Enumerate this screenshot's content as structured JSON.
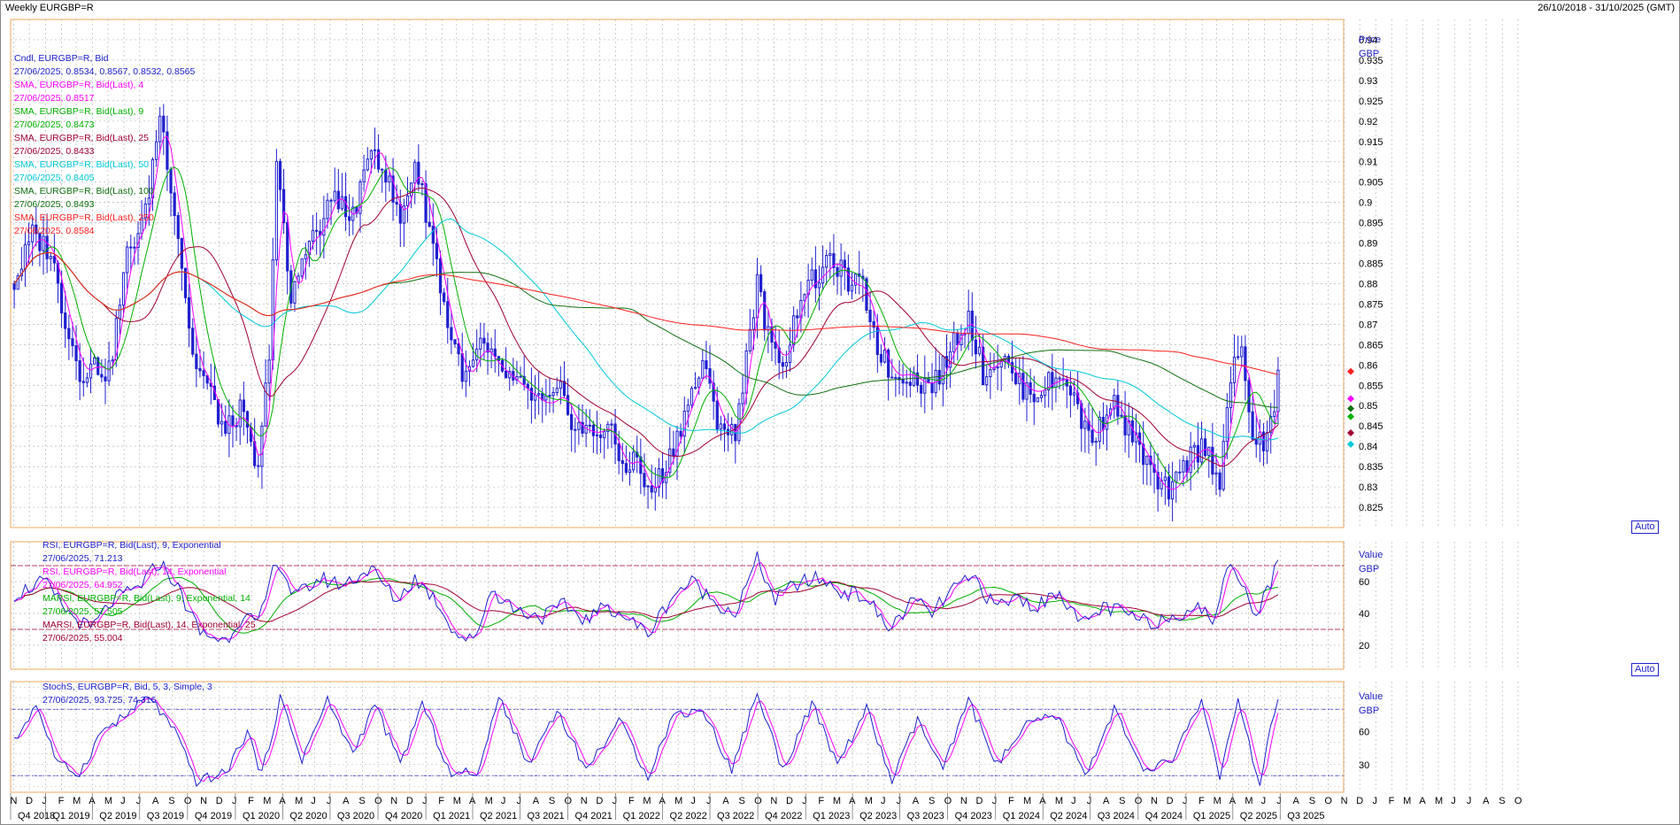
{
  "window": {
    "title": "Weekly EURGBP=R",
    "date_range": "26/10/2018 - 31/10/2025 (GMT)"
  },
  "colors": {
    "candle": "#2020d0",
    "sma4": "#ff00ff",
    "sma9": "#00b000",
    "sma25": "#a00030",
    "sma50": "#00c8d8",
    "sma100": "#107010",
    "sma250": "#ff2020",
    "grid": "#b8b8b8",
    "panel_border": "#f0a860"
  },
  "panels": {
    "price": {
      "axis_title": "Price",
      "axis_unit": "GBP",
      "auto_label": "Auto",
      "legend": [
        {
          "label": "Cndl, EURGBP=R, Bid",
          "value": "27/06/2025, 0.8534, 0.8567, 0.8532, 0.8565",
          "color": "#2020d0"
        },
        {
          "label": "SMA, EURGBP=R, Bid(Last),  4",
          "value": "27/06/2025, 0.8517",
          "color": "#ff00ff"
        },
        {
          "label": "SMA, EURGBP=R, Bid(Last),  9",
          "value": "27/06/2025, 0.8473",
          "color": "#00b000"
        },
        {
          "label": "SMA, EURGBP=R, Bid(Last),  25",
          "value": "27/06/2025, 0.8433",
          "color": "#a00030"
        },
        {
          "label": "SMA, EURGBP=R, Bid(Last),  50",
          "value": "27/06/2025, 0.8405",
          "color": "#00c8d8"
        },
        {
          "label": "SMA, EURGBP=R, Bid(Last),  100",
          "value": "27/06/2025, 0.8493",
          "color": "#107010"
        },
        {
          "label": "SMA, EURGBP=R, Bid(Last),  250",
          "value": "27/06/2025, 0.8584",
          "color": "#ff2020"
        }
      ],
      "ticks": [
        "0.825",
        "0.83",
        "0.835",
        "0.84",
        "0.845",
        "0.85",
        "0.855",
        "0.86",
        "0.865",
        "0.87",
        "0.875",
        "0.88",
        "0.885",
        "0.89",
        "0.895",
        "0.9",
        "0.905",
        "0.91",
        "0.915",
        "0.92",
        "0.925",
        "0.93",
        "0.935",
        "0.94"
      ]
    },
    "rsi": {
      "axis_title": "Value",
      "axis_unit": "GBP",
      "auto_label": "Auto",
      "legend": [
        {
          "label": "RSI, EURGBP=R, Bid(Last),  9, Exponential",
          "value": "27/06/2025, 71.213",
          "color": "#2020d0"
        },
        {
          "label": "RSI, EURGBP=R, Bid(Last),  14, Exponential",
          "value": "27/06/2025, 64.952",
          "color": "#ff00ff"
        },
        {
          "label": "MARSI, EURGBP=R, Bid(Last),  9, Exponential, 14",
          "value": "27/06/2025, 57.505",
          "color": "#00b000"
        },
        {
          "label": "MARSI, EURGBP=R, Bid(Last),  14, Exponential, 25",
          "value": "27/06/2025, 55.004",
          "color": "#a00030"
        }
      ],
      "ticks": [
        "20",
        "40",
        "60"
      ]
    },
    "stoch": {
      "axis_title": "Value",
      "axis_unit": "GBP",
      "legend": [
        {
          "label": "StochS, EURGBP=R, Bid,  5, 3, Simple, 3",
          "value": "27/06/2025, 93.725, 74.316",
          "color": "#2020d0"
        }
      ],
      "ticks": [
        "30",
        "60"
      ]
    }
  },
  "x_axis": {
    "months": [
      "N",
      "D",
      "J",
      "F",
      "M",
      "A",
      "M",
      "J",
      "J",
      "A",
      "S",
      "O",
      "N",
      "D",
      "J",
      "F",
      "M",
      "A",
      "M",
      "J",
      "J",
      "A",
      "S",
      "O",
      "N",
      "D",
      "J",
      "F",
      "M",
      "A",
      "M",
      "J",
      "J",
      "A",
      "S",
      "O",
      "N",
      "D",
      "J",
      "F",
      "M",
      "A",
      "M",
      "J",
      "J",
      "A",
      "S",
      "O",
      "N",
      "D",
      "J",
      "F",
      "M",
      "A",
      "M",
      "J",
      "J",
      "A",
      "S",
      "O",
      "N",
      "D",
      "J",
      "F",
      "M",
      "A",
      "M",
      "J",
      "J",
      "A",
      "S",
      "O",
      "N",
      "D",
      "J",
      "F",
      "M",
      "A",
      "M",
      "J",
      "J",
      "A",
      "S",
      "O",
      "N",
      "D",
      "J",
      "F",
      "M",
      "A",
      "M",
      "J",
      "J",
      "A",
      "S",
      "O"
    ],
    "quarters": [
      "Q4 2018",
      "Q1 2019",
      "Q2 2019",
      "Q3 2019",
      "Q4 2019",
      "Q1 2020",
      "Q2 2020",
      "Q3 2020",
      "Q4 2020",
      "Q1 2021",
      "Q2 2021",
      "Q3 2021",
      "Q4 2021",
      "Q1 2022",
      "Q2 2022",
      "Q3 2022",
      "Q4 2022",
      "Q1 2023",
      "Q2 2023",
      "Q3 2023",
      "Q4 2023",
      "Q1 2024",
      "Q2 2024",
      "Q3 2024",
      "Q4 2024",
      "Q1 2025",
      "Q2 2025",
      "Q3 2025"
    ]
  },
  "chart_data": {
    "type": "line",
    "title": "Weekly EURGBP=R",
    "x_range": [
      "26/10/2018",
      "31/10/2025"
    ],
    "last_date": "27/06/2025",
    "price_ylim": [
      0.82,
      0.945
    ],
    "price_knots": [
      [
        "2018-11-02",
        0.88
      ],
      [
        "2018-12-07",
        0.892
      ],
      [
        "2019-01-11",
        0.888
      ],
      [
        "2019-02-01",
        0.875
      ],
      [
        "2019-03-08",
        0.858
      ],
      [
        "2019-04-05",
        0.86
      ],
      [
        "2019-05-03",
        0.858
      ],
      [
        "2019-06-07",
        0.887
      ],
      [
        "2019-07-12",
        0.897
      ],
      [
        "2019-08-09",
        0.922
      ],
      [
        "2019-08-30",
        0.905
      ],
      [
        "2019-09-20",
        0.885
      ],
      [
        "2019-10-11",
        0.862
      ],
      [
        "2019-11-08",
        0.855
      ],
      [
        "2019-12-13",
        0.843
      ],
      [
        "2020-01-10",
        0.849
      ],
      [
        "2020-02-14",
        0.833
      ],
      [
        "2020-03-06",
        0.864
      ],
      [
        "2020-03-20",
        0.91
      ],
      [
        "2020-04-17",
        0.875
      ],
      [
        "2020-05-15",
        0.89
      ],
      [
        "2020-06-12",
        0.893
      ],
      [
        "2020-07-10",
        0.903
      ],
      [
        "2020-08-07",
        0.895
      ],
      [
        "2020-09-04",
        0.905
      ],
      [
        "2020-09-18",
        0.915
      ],
      [
        "2020-10-16",
        0.907
      ],
      [
        "2020-11-13",
        0.895
      ],
      [
        "2020-12-11",
        0.91
      ],
      [
        "2021-01-15",
        0.89
      ],
      [
        "2021-02-12",
        0.87
      ],
      [
        "2021-03-19",
        0.856
      ],
      [
        "2021-04-16",
        0.865
      ],
      [
        "2021-05-14",
        0.86
      ],
      [
        "2021-06-18",
        0.856
      ],
      [
        "2021-07-16",
        0.853
      ],
      [
        "2021-08-20",
        0.85
      ],
      [
        "2021-09-17",
        0.853
      ],
      [
        "2021-10-15",
        0.845
      ],
      [
        "2021-11-19",
        0.843
      ],
      [
        "2021-12-17",
        0.845
      ],
      [
        "2022-01-14",
        0.835
      ],
      [
        "2022-02-11",
        0.837
      ],
      [
        "2022-03-04",
        0.828
      ],
      [
        "2022-04-08",
        0.835
      ],
      [
        "2022-05-13",
        0.848
      ],
      [
        "2022-06-17",
        0.86
      ],
      [
        "2022-07-15",
        0.847
      ],
      [
        "2022-08-19",
        0.842
      ],
      [
        "2022-09-09",
        0.863
      ],
      [
        "2022-09-30",
        0.88
      ],
      [
        "2022-10-28",
        0.863
      ],
      [
        "2022-11-25",
        0.862
      ],
      [
        "2022-12-23",
        0.878
      ],
      [
        "2023-01-27",
        0.882
      ],
      [
        "2023-02-24",
        0.886
      ],
      [
        "2023-03-24",
        0.88
      ],
      [
        "2023-04-21",
        0.879
      ],
      [
        "2023-05-19",
        0.865
      ],
      [
        "2023-06-16",
        0.857
      ],
      [
        "2023-07-14",
        0.858
      ],
      [
        "2023-08-18",
        0.855
      ],
      [
        "2023-09-15",
        0.857
      ],
      [
        "2023-10-13",
        0.866
      ],
      [
        "2023-11-10",
        0.872
      ],
      [
        "2023-12-08",
        0.858
      ],
      [
        "2024-01-12",
        0.862
      ],
      [
        "2024-02-16",
        0.855
      ],
      [
        "2024-03-15",
        0.853
      ],
      [
        "2024-04-19",
        0.856
      ],
      [
        "2024-05-17",
        0.857
      ],
      [
        "2024-06-14",
        0.846
      ],
      [
        "2024-07-12",
        0.842
      ],
      [
        "2024-08-09",
        0.852
      ],
      [
        "2024-09-06",
        0.845
      ],
      [
        "2024-10-11",
        0.838
      ],
      [
        "2024-11-08",
        0.83
      ],
      [
        "2024-12-06",
        0.829
      ],
      [
        "2025-01-10",
        0.838
      ],
      [
        "2025-02-07",
        0.84
      ],
      [
        "2025-03-07",
        0.832
      ],
      [
        "2025-03-28",
        0.857
      ],
      [
        "2025-04-18",
        0.863
      ],
      [
        "2025-05-09",
        0.843
      ],
      [
        "2025-05-30",
        0.84
      ],
      [
        "2025-06-13",
        0.845
      ],
      [
        "2025-06-27",
        0.8565
      ]
    ],
    "rsi_ylim": [
      5,
      85
    ],
    "rsi_knots": [
      [
        "2018-11-02",
        52
      ],
      [
        "2018-12-28",
        60
      ],
      [
        "2019-02-15",
        40
      ],
      [
        "2019-03-29",
        30
      ],
      [
        "2019-05-10",
        48
      ],
      [
        "2019-06-28",
        56
      ],
      [
        "2019-08-09",
        72
      ],
      [
        "2019-09-06",
        60
      ],
      [
        "2019-10-25",
        28
      ],
      [
        "2019-12-13",
        23
      ],
      [
        "2020-01-17",
        40
      ],
      [
        "2020-02-14",
        32
      ],
      [
        "2020-03-20",
        75
      ],
      [
        "2020-04-24",
        50
      ],
      [
        "2020-06-12",
        62
      ],
      [
        "2020-07-24",
        58
      ],
      [
        "2020-09-18",
        68
      ],
      [
        "2020-11-06",
        48
      ],
      [
        "2020-12-11",
        62
      ],
      [
        "2021-01-22",
        48
      ],
      [
        "2021-02-26",
        28
      ],
      [
        "2021-04-02",
        22
      ],
      [
        "2021-05-07",
        55
      ],
      [
        "2021-06-25",
        42
      ],
      [
        "2021-08-13",
        38
      ],
      [
        "2021-09-24",
        45
      ],
      [
        "2021-11-05",
        36
      ],
      [
        "2021-12-17",
        45
      ],
      [
        "2022-01-28",
        36
      ],
      [
        "2022-03-04",
        27
      ],
      [
        "2022-04-22",
        52
      ],
      [
        "2022-05-27",
        60
      ],
      [
        "2022-07-08",
        48
      ],
      [
        "2022-08-19",
        40
      ],
      [
        "2022-09-30",
        74
      ],
      [
        "2022-11-04",
        48
      ],
      [
        "2022-12-09",
        58
      ],
      [
        "2023-01-27",
        62
      ],
      [
        "2023-03-10",
        54
      ],
      [
        "2023-04-28",
        50
      ],
      [
        "2023-06-09",
        30
      ],
      [
        "2023-07-28",
        48
      ],
      [
        "2023-09-01",
        40
      ],
      [
        "2023-10-13",
        56
      ],
      [
        "2023-11-24",
        62
      ],
      [
        "2023-12-29",
        44
      ],
      [
        "2024-02-09",
        50
      ],
      [
        "2024-03-22",
        44
      ],
      [
        "2024-05-03",
        55
      ],
      [
        "2024-06-14",
        32
      ],
      [
        "2024-07-26",
        44
      ],
      [
        "2024-09-06",
        40
      ],
      [
        "2024-10-18",
        34
      ],
      [
        "2024-12-06",
        38
      ],
      [
        "2025-01-17",
        45
      ],
      [
        "2025-02-21",
        36
      ],
      [
        "2025-03-28",
        72
      ],
      [
        "2025-04-18",
        62
      ],
      [
        "2025-05-16",
        38
      ],
      [
        "2025-06-06",
        55
      ],
      [
        "2025-06-27",
        71.2
      ]
    ],
    "stoch_ylim": [
      5,
      105
    ],
    "stoch_knots": [
      [
        "2018-11-02",
        50
      ],
      [
        "2018-12-14",
        85
      ],
      [
        "2019-01-25",
        30
      ],
      [
        "2019-03-08",
        22
      ],
      [
        "2019-04-19",
        60
      ],
      [
        "2019-06-07",
        75
      ],
      [
        "2019-07-19",
        92
      ],
      [
        "2019-09-06",
        60
      ],
      [
        "2019-10-18",
        15
      ],
      [
        "2019-12-13",
        22
      ],
      [
        "2020-01-24",
        60
      ],
      [
        "2020-02-21",
        20
      ],
      [
        "2020-03-27",
        90
      ],
      [
        "2020-05-08",
        35
      ],
      [
        "2020-06-26",
        88
      ],
      [
        "2020-08-14",
        40
      ],
      [
        "2020-09-25",
        85
      ],
      [
        "2020-11-13",
        30
      ],
      [
        "2020-12-25",
        85
      ],
      [
        "2021-02-19",
        20
      ],
      [
        "2021-04-16",
        25
      ],
      [
        "2021-05-21",
        95
      ],
      [
        "2021-07-16",
        30
      ],
      [
        "2021-09-10",
        80
      ],
      [
        "2021-11-05",
        25
      ],
      [
        "2022-01-07",
        70
      ],
      [
        "2022-03-04",
        20
      ],
      [
        "2022-04-22",
        75
      ],
      [
        "2022-06-17",
        80
      ],
      [
        "2022-08-12",
        25
      ],
      [
        "2022-09-30",
        95
      ],
      [
        "2022-11-18",
        25
      ],
      [
        "2023-01-13",
        85
      ],
      [
        "2023-03-03",
        30
      ],
      [
        "2023-04-28",
        80
      ],
      [
        "2023-06-16",
        15
      ],
      [
        "2023-08-04",
        70
      ],
      [
        "2023-09-22",
        25
      ],
      [
        "2023-11-10",
        88
      ],
      [
        "2024-01-05",
        30
      ],
      [
        "2024-03-01",
        65
      ],
      [
        "2024-04-26",
        75
      ],
      [
        "2024-06-21",
        20
      ],
      [
        "2024-08-16",
        80
      ],
      [
        "2024-10-11",
        22
      ],
      [
        "2024-12-06",
        35
      ],
      [
        "2025-01-31",
        88
      ],
      [
        "2025-03-07",
        20
      ],
      [
        "2025-04-11",
        85
      ],
      [
        "2025-05-23",
        12
      ],
      [
        "2025-06-27",
        93.7
      ]
    ],
    "sma_legend_last": {
      "sma4": 0.8517,
      "sma9": 0.8473,
      "sma25": 0.8433,
      "sma50": 0.8405,
      "sma100": 0.8493,
      "sma250": 0.8584
    }
  }
}
